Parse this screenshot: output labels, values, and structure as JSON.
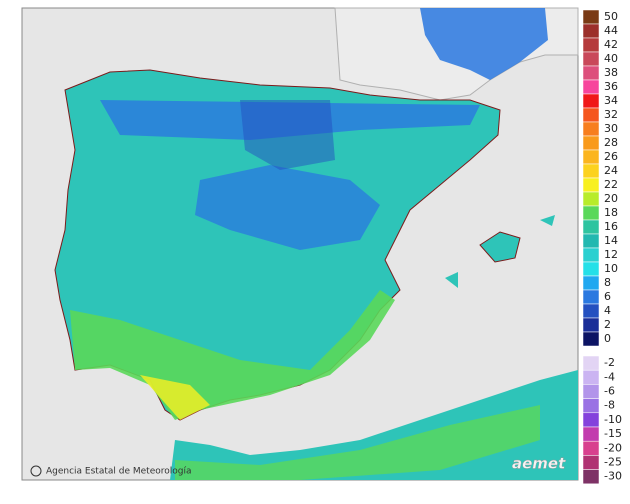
{
  "legend": {
    "positive": [
      {
        "label": "50",
        "color": "#7a3a14"
      },
      {
        "label": "44",
        "color": "#9c2f2a"
      },
      {
        "label": "42",
        "color": "#b53a3c"
      },
      {
        "label": "40",
        "color": "#c9485a"
      },
      {
        "label": "38",
        "color": "#dd4f7c"
      },
      {
        "label": "36",
        "color": "#f7459c"
      },
      {
        "label": "34",
        "color": "#f01818"
      },
      {
        "label": "32",
        "color": "#f5561e"
      },
      {
        "label": "30",
        "color": "#f77e1e"
      },
      {
        "label": "28",
        "color": "#f99a1c"
      },
      {
        "label": "26",
        "color": "#fbb51e"
      },
      {
        "label": "24",
        "color": "#fcd21e"
      },
      {
        "label": "22",
        "color": "#f8f020"
      },
      {
        "label": "20",
        "color": "#b8ec2a"
      },
      {
        "label": "18",
        "color": "#5ad85a"
      },
      {
        "label": "16",
        "color": "#2ec4a0"
      },
      {
        "label": "14",
        "color": "#22b8b0"
      },
      {
        "label": "12",
        "color": "#2ad0d0"
      },
      {
        "label": "10",
        "color": "#24e0e8"
      },
      {
        "label": "8",
        "color": "#20a8f0"
      },
      {
        "label": "6",
        "color": "#2a78e0"
      },
      {
        "label": "4",
        "color": "#2450c0"
      },
      {
        "label": "2",
        "color": "#1a2e98"
      },
      {
        "label": "0",
        "color": "#0c1464"
      }
    ],
    "negative": [
      {
        "label": "-2",
        "color": "#e2d4f4"
      },
      {
        "label": "-4",
        "color": "#cbb4f2"
      },
      {
        "label": "-6",
        "color": "#b294ea"
      },
      {
        "label": "-8",
        "color": "#9a72e4"
      },
      {
        "label": "-10",
        "color": "#8442dc"
      },
      {
        "label": "-15",
        "color": "#c23cae"
      },
      {
        "label": "-20",
        "color": "#d8408e"
      },
      {
        "label": "-25",
        "color": "#b03272"
      },
      {
        "label": "-30",
        "color": "#7e3266"
      }
    ]
  },
  "footer": {
    "credit": "Agencia Estatal de Meteorología",
    "logo": "aemet"
  }
}
